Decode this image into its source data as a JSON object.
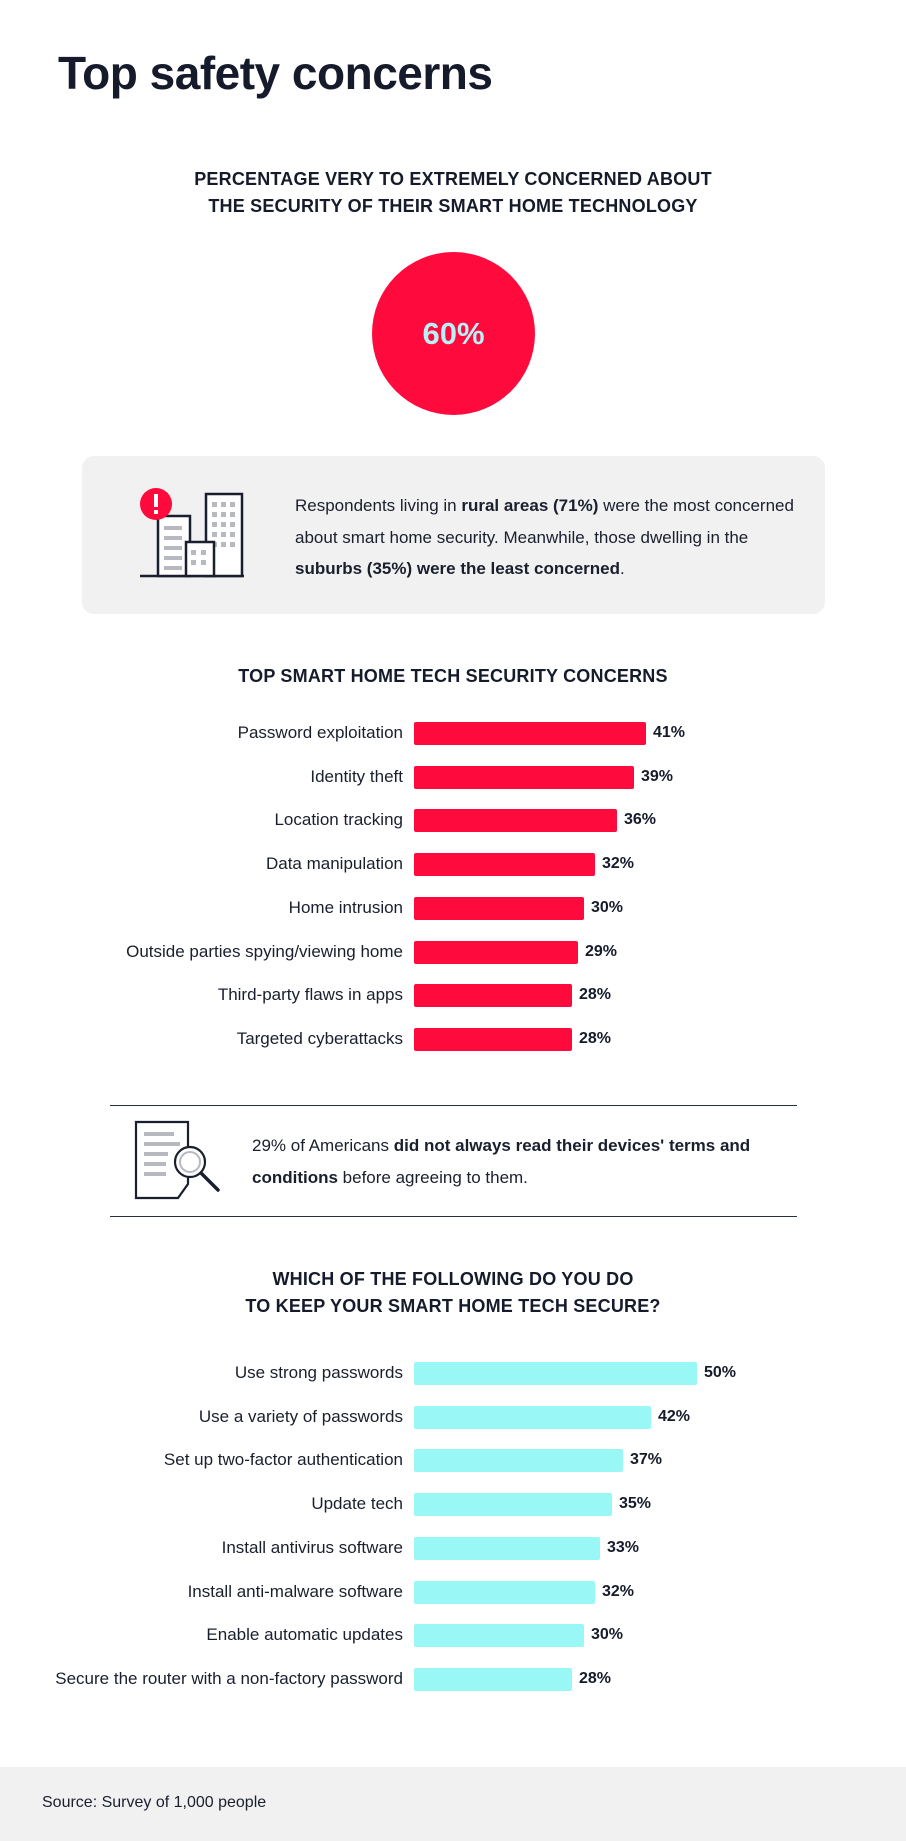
{
  "title": "Top safety concerns",
  "colors": {
    "accent_red": "#ff0a3c",
    "accent_cyan": "#99f7f6",
    "panel_gray": "#f1f1f2",
    "text_dark": "#161b2b"
  },
  "headline": {
    "line1": "PERCENTAGE VERY TO EXTREMELY CONCERNED ABOUT",
    "line2": "THE SECURITY OF THEIR SMART HOME TECHNOLOGY",
    "value": "60%",
    "value_number": 60
  },
  "callout": {
    "icon": "buildings-alert-icon",
    "t1": "Respondents living in ",
    "b1": "rural areas (71%)",
    "t2": " were the most concerned about smart home security. Meanwhile, those dwelling in the ",
    "b2": "suburbs (35%) were the least concerned",
    "t3": "."
  },
  "terms": {
    "icon": "document-magnifier-icon",
    "t1": "29% of Americans ",
    "b1": "did not always read their devices' terms and conditions",
    "t2": " before agreeing to them."
  },
  "footer": {
    "source": "Source: Survey of 1,000 people"
  },
  "chart_data": [
    {
      "type": "bar",
      "orientation": "horizontal",
      "title": "TOP SMART HOME TECH SECURITY CONCERNS",
      "color": "#ff0a3c",
      "unit": "%",
      "categories": [
        "Password exploitation",
        "Identity theft",
        "Location tracking",
        "Data manipulation",
        "Home intrusion",
        "Outside parties spying/viewing home",
        "Third-party flaws in apps",
        "Targeted cyberattacks"
      ],
      "values": [
        41,
        39,
        36,
        32,
        30,
        29,
        28,
        28
      ],
      "labels": [
        "41%",
        "39%",
        "36%",
        "32%",
        "30%",
        "29%",
        "28%",
        "28%"
      ]
    },
    {
      "type": "bar",
      "orientation": "horizontal",
      "title_line1": "WHICH OF THE FOLLOWING DO YOU DO",
      "title_line2": "TO KEEP YOUR SMART HOME TECH SECURE?",
      "color": "#99f7f6",
      "unit": "%",
      "categories": [
        "Use strong passwords",
        "Use a variety of passwords",
        "Set up two-factor authentication",
        "Update tech",
        "Install antivirus software",
        "Install anti-malware software",
        "Enable automatic updates",
        "Secure the router with a non-factory password"
      ],
      "values": [
        50,
        42,
        37,
        35,
        33,
        32,
        30,
        28
      ],
      "labels": [
        "50%",
        "42%",
        "37%",
        "35%",
        "33%",
        "32%",
        "30%",
        "28%"
      ]
    }
  ]
}
